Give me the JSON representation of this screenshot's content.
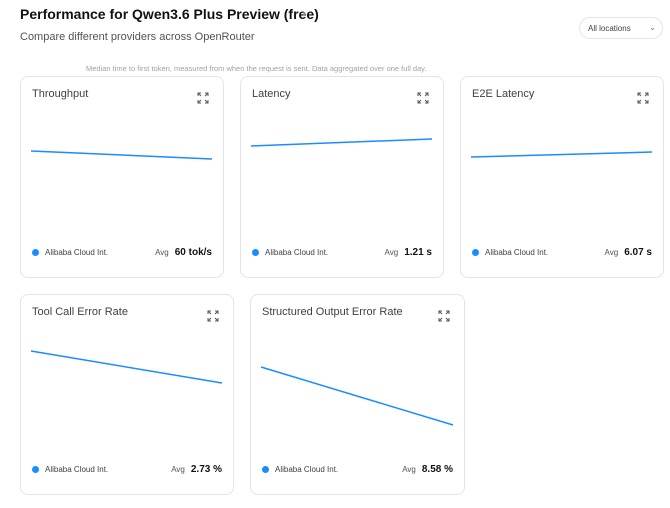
{
  "header": {
    "title": "Performance for Qwen3.6 Plus Preview (free)",
    "subtitle": "Compare different providers across OpenRouter",
    "location_filter": "All locations"
  },
  "tooltip": "Median time to first token, measured from when the request is sent. Data aggregated over one full day.",
  "cards": [
    {
      "title": "Throughput",
      "provider": "Alibaba Cloud Int.",
      "avg_label": "Avg",
      "avg_value": "60 tok/s"
    },
    {
      "title": "Latency",
      "provider": "Alibaba Cloud Int.",
      "avg_label": "Avg",
      "avg_value": "1.21 s"
    },
    {
      "title": "E2E Latency",
      "provider": "Alibaba Cloud Int.",
      "avg_label": "Avg",
      "avg_value": "6.07 s"
    },
    {
      "title": "Tool Call Error Rate",
      "provider": "Alibaba Cloud Int.",
      "avg_label": "Avg",
      "avg_value": "2.73 %"
    },
    {
      "title": "Structured Output Error Rate",
      "provider": "Alibaba Cloud Int.",
      "avg_label": "Avg",
      "avg_value": "8.58 %"
    }
  ]
}
